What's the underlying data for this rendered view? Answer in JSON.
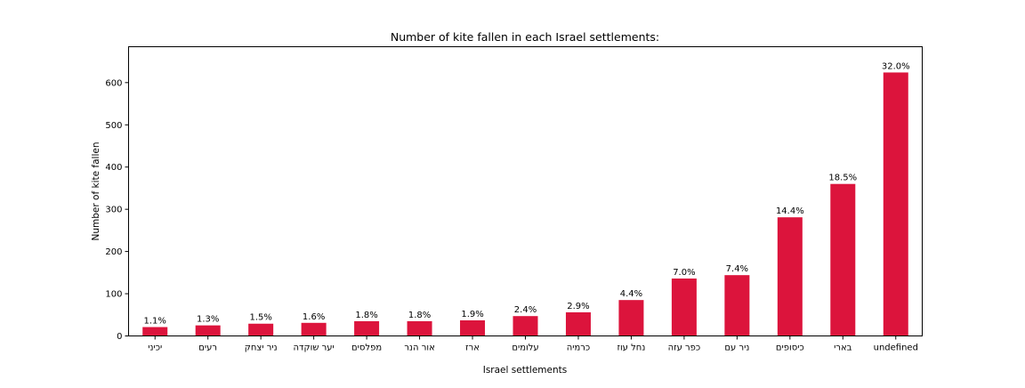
{
  "chart_data": {
    "type": "bar",
    "title": "Number of kite fallen in each Israel settlements:",
    "xlabel": "Israel settlements",
    "ylabel": "Number of kite fallen",
    "categories": [
      "יכיני",
      "רעים",
      "ניר יצחק",
      "יער שוקדה",
      "מפלסים",
      "אור הנר",
      "ארז",
      "עלומים",
      "כרמיה",
      "נחל עוז",
      "כפר עזה",
      "ניר עם",
      "כיסופים",
      "בארי",
      "undefined"
    ],
    "values": [
      21,
      25,
      29,
      31,
      35,
      35,
      37,
      47,
      56,
      85,
      136,
      144,
      281,
      360,
      624
    ],
    "data_labels": [
      "1.1%",
      "1.3%",
      "1.5%",
      "1.6%",
      "1.8%",
      "1.8%",
      "1.9%",
      "2.4%",
      "2.9%",
      "4.4%",
      "7.0%",
      "7.4%",
      "14.4%",
      "18.5%",
      "32.0%"
    ],
    "yticks": [
      0,
      100,
      200,
      300,
      400,
      500,
      600
    ],
    "ylim": [
      0,
      685
    ],
    "grid": false,
    "bar_color": "#dc143c"
  }
}
